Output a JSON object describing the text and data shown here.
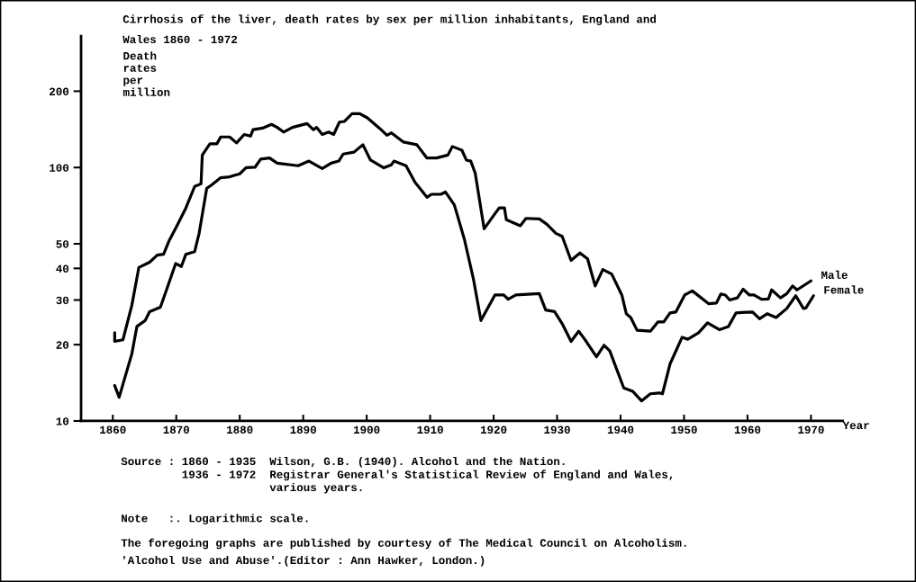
{
  "chart_data": {
    "type": "line",
    "title": "Cirrhosis of the liver, death rates by sex per million inhabitants, England and\nWales 1860 - 1972",
    "ylabel": "Death\nrates\nper\nmillion",
    "xlabel": "Year",
    "log": "y",
    "grid": false,
    "legend": false,
    "marker": "none",
    "line_style": "solid",
    "xlim": [
      1855,
      1975
    ],
    "xticks": [
      1860,
      1870,
      1880,
      1890,
      1900,
      1910,
      1920,
      1930,
      1940,
      1950,
      1960,
      1970
    ],
    "ylim": [
      10,
      330
    ],
    "yticks": [
      10,
      20,
      30,
      40,
      50,
      100,
      200
    ],
    "series": [
      {
        "name": "Male",
        "color": "#000000",
        "x": [
          1860.3,
          1860.3,
          1861.6,
          1863,
          1864.1,
          1865.8,
          1867,
          1868,
          1868.9,
          1870,
          1871.5,
          1872.9,
          1873.9,
          1874.1,
          1875.3,
          1876.4,
          1877,
          1878.4,
          1879.5,
          1880.7,
          1881.7,
          1882.1,
          1883.6,
          1885,
          1885.9,
          1886.9,
          1888.3,
          1890.6,
          1891.6,
          1892.1,
          1893,
          1894,
          1894.8,
          1895.7,
          1896.5,
          1897.7,
          1898.9,
          1900.1,
          1902,
          1903.2,
          1903.9,
          1905.8,
          1907.9,
          1909.5,
          1911,
          1912.8,
          1913.5,
          1915,
          1915.7,
          1916.4,
          1917.1,
          1918.5,
          1920.2,
          1920.9,
          1921.7,
          1922,
          1924.2,
          1925.1,
          1927.2,
          1928.4,
          1929.8,
          1930.8,
          1932.2,
          1933.6,
          1934.8,
          1936,
          1937.2,
          1938.6,
          1940.2,
          1940.9,
          1941.6,
          1942.6,
          1944.7,
          1945.9,
          1946.8,
          1947.8,
          1948.7,
          1950.1,
          1951.3,
          1953.9,
          1955.1,
          1955.8,
          1956.5,
          1957.2,
          1958.4,
          1959.3,
          1960.3,
          1961,
          1962.2,
          1963.3,
          1963.8,
          1965.2,
          1966.2,
          1967.1,
          1967.8,
          1970
        ],
        "values": [
          22.3,
          20.6,
          20.9,
          28.6,
          40.3,
          42.3,
          45.1,
          45.5,
          51.6,
          58.2,
          69.1,
          84.2,
          86.2,
          112,
          124,
          124,
          132,
          132,
          125,
          135,
          133,
          141,
          143,
          148,
          144,
          138,
          144,
          149,
          141,
          144,
          135,
          138,
          135,
          151,
          152,
          163,
          163,
          157,
          143,
          134,
          137,
          126,
          123,
          109,
          109,
          112,
          121,
          117,
          107,
          106,
          95,
          57.3,
          65.7,
          69.3,
          69.3,
          62.2,
          58.9,
          63,
          62.7,
          59.7,
          55,
          53.5,
          43,
          46,
          43.6,
          34.1,
          39.6,
          38,
          31.4,
          26.5,
          25.6,
          22.8,
          22.6,
          24.6,
          24.6,
          26.7,
          26.9,
          31.4,
          32.6,
          29,
          29.2,
          31.7,
          31.4,
          30,
          30.6,
          33.1,
          31.4,
          31.4,
          30.2,
          30.3,
          32.9,
          30.6,
          31.8,
          34.1,
          32.9,
          35.7
        ]
      },
      {
        "name": "Female",
        "color": "#000000",
        "x": [
          1860.3,
          1861,
          1863,
          1863.8,
          1865.1,
          1865.8,
          1867.5,
          1868.5,
          1869.9,
          1870.8,
          1871.5,
          1872.9,
          1873.6,
          1874.8,
          1875.5,
          1877,
          1878.4,
          1880,
          1881,
          1882.4,
          1883.3,
          1884.7,
          1885.9,
          1889.2,
          1890.9,
          1893,
          1894.4,
          1895.6,
          1896.3,
          1898,
          1899.4,
          1900.6,
          1902.7,
          1903.9,
          1904.3,
          1906.2,
          1907.6,
          1909.5,
          1910.2,
          1911.7,
          1912.4,
          1913.8,
          1915.4,
          1916.8,
          1918,
          1920.2,
          1921.6,
          1922.3,
          1923.5,
          1927.2,
          1928.2,
          1929.6,
          1930.8,
          1932.2,
          1933.4,
          1934.3,
          1936.2,
          1937.4,
          1938.3,
          1940.5,
          1941.9,
          1943.3,
          1944.7,
          1946.1,
          1946.6,
          1947.8,
          1949.7,
          1950.6,
          1952.3,
          1953.7,
          1955.6,
          1957,
          1958.2,
          1959.1,
          1960.8,
          1961.9,
          1963.1,
          1964.5,
          1966.2,
          1967.6,
          1968.8,
          1969.2,
          1970.4
        ],
        "values": [
          13.8,
          12.4,
          18.4,
          23.6,
          24.9,
          27,
          28.1,
          33.1,
          41.8,
          40.7,
          45.4,
          46.6,
          55,
          82.8,
          85.1,
          91.1,
          91.9,
          94.4,
          99.8,
          100.2,
          108,
          109,
          104,
          101.6,
          106,
          99,
          104,
          106,
          113,
          115,
          123,
          107,
          99.7,
          102.5,
          106,
          101.6,
          87.5,
          76.3,
          78.4,
          78.4,
          80.1,
          71.3,
          52,
          36.5,
          24.9,
          31.4,
          31.4,
          30.2,
          31.4,
          31.8,
          27.4,
          27,
          24.2,
          20.6,
          22.6,
          21.1,
          17.9,
          19.9,
          18.9,
          13.5,
          13.1,
          12,
          12.8,
          12.9,
          12.8,
          16.8,
          21.4,
          21,
          22.3,
          24.4,
          22.9,
          23.6,
          26.7,
          26.8,
          26.9,
          25.3,
          26.5,
          25.6,
          27.8,
          31.2,
          27.8,
          27.9,
          31.2
        ]
      }
    ],
    "annotations": [
      "Source : 1860 - 1935  Wilson, G.B. (1940). Alcohol and the Nation.\n         1936 - 1972  Registrar General's Statistical Review of England and Wales,\n                      various years.",
      "Note   :. Logarithmic scale.",
      "The foregoing graphs are published by courtesy of The Medical Council on Alcoholism.",
      "'Alcohol Use and Abuse'.(Editor : Ann Hawker, London.)"
    ]
  }
}
